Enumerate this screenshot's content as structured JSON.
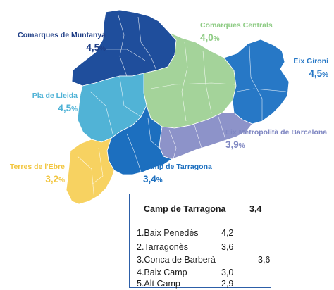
{
  "regions": {
    "muntanya": {
      "name": "Comarques de Muntanya",
      "value": "4,5",
      "pct": "%",
      "color": "#1f4e9c"
    },
    "centrals": {
      "name": "Comarques Centrals",
      "value": "4,0",
      "pct": "%",
      "color": "#a4d39a"
    },
    "gironi": {
      "name": "Eix Gironí",
      "value": "4,5",
      "pct": "%",
      "color": "#2778c6"
    },
    "lleida": {
      "name": "Pla de Lleida",
      "value": "4,5",
      "pct": "%",
      "color": "#51b3d6"
    },
    "metro": {
      "name": "Eix Metropolità de Barcelona",
      "value": "3,9",
      "pct": "%",
      "color": "#8d93c9"
    },
    "ebre": {
      "name": "Terres de l'Ebre",
      "value": "3,2",
      "pct": "%",
      "color": "#f7d261"
    },
    "tarragona": {
      "name": "Camp de Tarragona",
      "value": "3,4",
      "pct": "%",
      "color": "#1c6fbf"
    }
  },
  "detail_box": {
    "title": "Camp de Tarragona",
    "title_value": "3,4",
    "rows": [
      {
        "name": "1.Baix Penedès",
        "value": "4,2"
      },
      {
        "name": "2.Tarragonès",
        "value": "3,6"
      },
      {
        "name": "3.Conca de Barberà",
        "value": "3,6"
      },
      {
        "name": "4.Baix Camp",
        "value": "3,0"
      },
      {
        "name": "5.Alt Camp",
        "value": "2,9"
      }
    ]
  }
}
